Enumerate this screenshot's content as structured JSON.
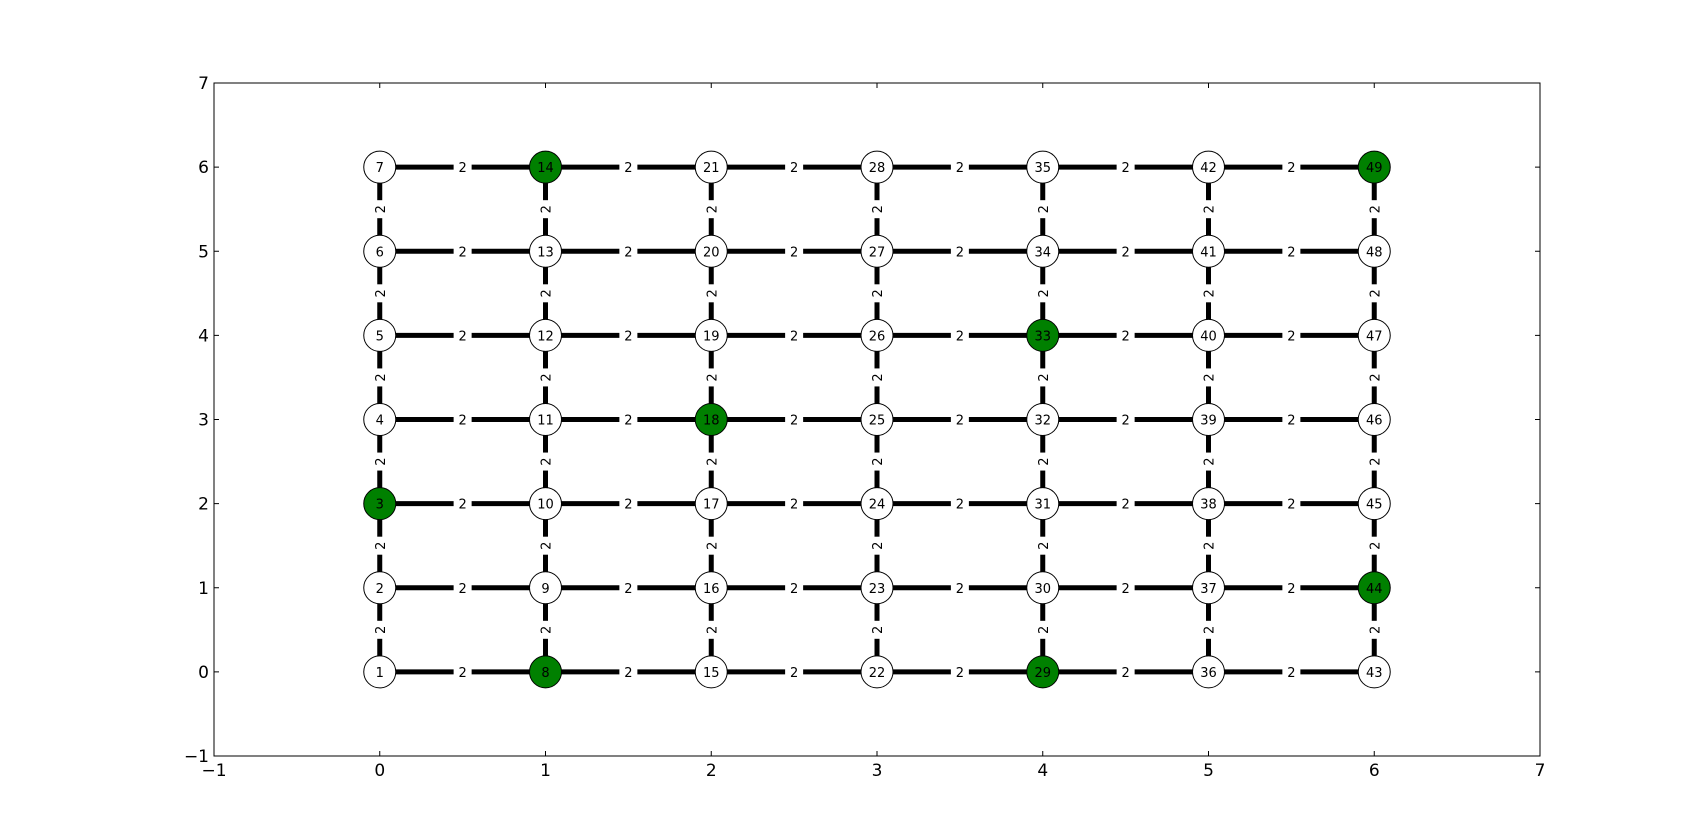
{
  "axes": {
    "xlim": [
      -1,
      7
    ],
    "ylim": [
      -1,
      7
    ],
    "xticks": [
      -1,
      0,
      1,
      2,
      3,
      4,
      5,
      6,
      7
    ],
    "yticks": [
      -1,
      0,
      1,
      2,
      3,
      4,
      5,
      6,
      7
    ],
    "xtick_labels": [
      "−1",
      "0",
      "1",
      "2",
      "3",
      "4",
      "5",
      "6",
      "7"
    ],
    "ytick_labels": [
      "−1",
      "0",
      "1",
      "2",
      "3",
      "4",
      "5",
      "6",
      "7"
    ]
  },
  "graph": {
    "grid_columns": 7,
    "grid_rows": 7,
    "edge_weight_label": "2",
    "node_fill": "#ffffff",
    "highlight_fill": "#008000",
    "edge_color": "#000000",
    "nodes": [
      {
        "id": "1",
        "x": 0,
        "y": 0
      },
      {
        "id": "2",
        "x": 0,
        "y": 1
      },
      {
        "id": "3",
        "x": 0,
        "y": 2,
        "highlight": true
      },
      {
        "id": "4",
        "x": 0,
        "y": 3
      },
      {
        "id": "5",
        "x": 0,
        "y": 4
      },
      {
        "id": "6",
        "x": 0,
        "y": 5
      },
      {
        "id": "7",
        "x": 0,
        "y": 6
      },
      {
        "id": "8",
        "x": 1,
        "y": 0,
        "highlight": true
      },
      {
        "id": "9",
        "x": 1,
        "y": 1
      },
      {
        "id": "10",
        "x": 1,
        "y": 2
      },
      {
        "id": "11",
        "x": 1,
        "y": 3
      },
      {
        "id": "12",
        "x": 1,
        "y": 4
      },
      {
        "id": "13",
        "x": 1,
        "y": 5
      },
      {
        "id": "14",
        "x": 1,
        "y": 6,
        "highlight": true
      },
      {
        "id": "15",
        "x": 2,
        "y": 0
      },
      {
        "id": "16",
        "x": 2,
        "y": 1
      },
      {
        "id": "17",
        "x": 2,
        "y": 2
      },
      {
        "id": "18",
        "x": 2,
        "y": 3,
        "highlight": true
      },
      {
        "id": "19",
        "x": 2,
        "y": 4
      },
      {
        "id": "20",
        "x": 2,
        "y": 5
      },
      {
        "id": "21",
        "x": 2,
        "y": 6
      },
      {
        "id": "22",
        "x": 3,
        "y": 0
      },
      {
        "id": "23",
        "x": 3,
        "y": 1
      },
      {
        "id": "24",
        "x": 3,
        "y": 2
      },
      {
        "id": "25",
        "x": 3,
        "y": 3
      },
      {
        "id": "26",
        "x": 3,
        "y": 4
      },
      {
        "id": "27",
        "x": 3,
        "y": 5
      },
      {
        "id": "28",
        "x": 3,
        "y": 6
      },
      {
        "id": "29",
        "x": 4,
        "y": 0,
        "highlight": true
      },
      {
        "id": "30",
        "x": 4,
        "y": 1
      },
      {
        "id": "31",
        "x": 4,
        "y": 2
      },
      {
        "id": "32",
        "x": 4,
        "y": 3
      },
      {
        "id": "33",
        "x": 4,
        "y": 4,
        "highlight": true
      },
      {
        "id": "34",
        "x": 4,
        "y": 5
      },
      {
        "id": "35",
        "x": 4,
        "y": 6
      },
      {
        "id": "36",
        "x": 5,
        "y": 0
      },
      {
        "id": "37",
        "x": 5,
        "y": 1
      },
      {
        "id": "38",
        "x": 5,
        "y": 2
      },
      {
        "id": "39",
        "x": 5,
        "y": 3
      },
      {
        "id": "40",
        "x": 5,
        "y": 4
      },
      {
        "id": "41",
        "x": 5,
        "y": 5
      },
      {
        "id": "42",
        "x": 5,
        "y": 6
      },
      {
        "id": "43",
        "x": 6,
        "y": 0
      },
      {
        "id": "44",
        "x": 6,
        "y": 1,
        "highlight": true
      },
      {
        "id": "45",
        "x": 6,
        "y": 2
      },
      {
        "id": "46",
        "x": 6,
        "y": 3
      },
      {
        "id": "47",
        "x": 6,
        "y": 4
      },
      {
        "id": "48",
        "x": 6,
        "y": 5
      },
      {
        "id": "49",
        "x": 6,
        "y": 6,
        "highlight": true
      }
    ]
  }
}
